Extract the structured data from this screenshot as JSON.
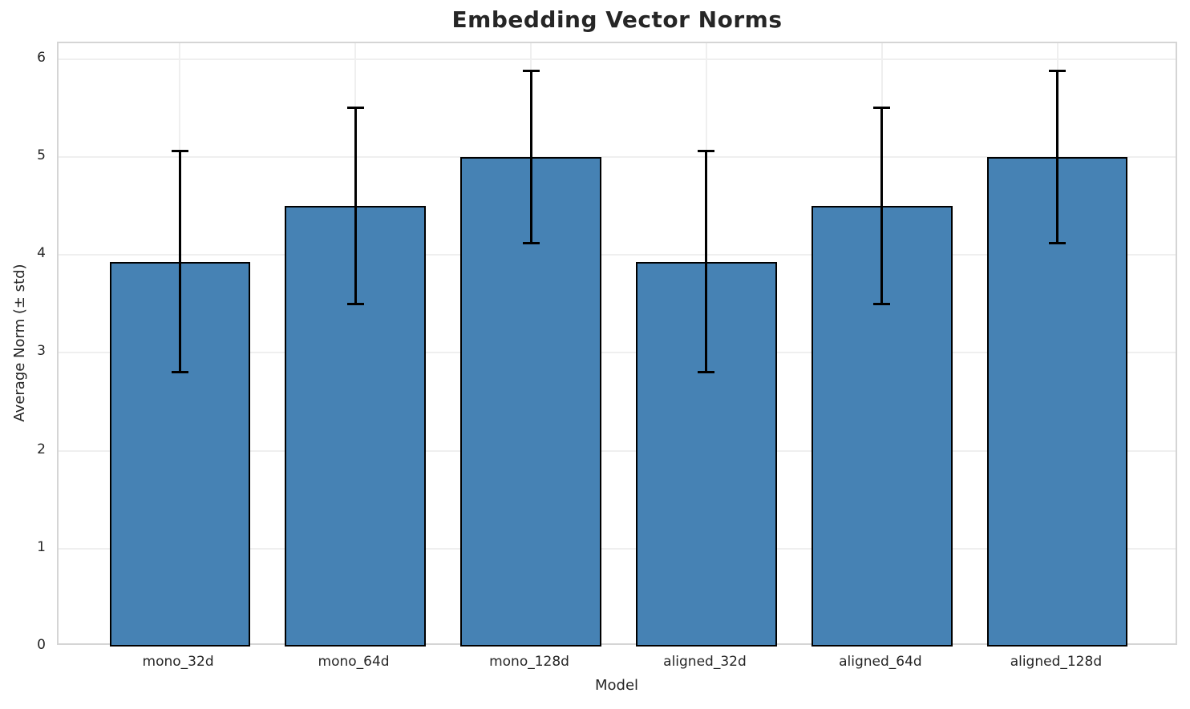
{
  "chart_data": {
    "type": "bar",
    "title": "Embedding Vector Norms",
    "xlabel": "Model",
    "ylabel": "Average Norm (± std)",
    "categories": [
      "mono_32d",
      "mono_64d",
      "mono_128d",
      "aligned_32d",
      "aligned_64d",
      "aligned_128d"
    ],
    "values": [
      3.93,
      4.5,
      5.0,
      3.93,
      4.5,
      5.0
    ],
    "errors": [
      1.13,
      1.0,
      0.88,
      1.13,
      1.0,
      0.88
    ],
    "error_style": "plus-minus std with caps",
    "yticks": [
      0,
      1,
      2,
      3,
      4,
      5,
      6
    ],
    "ylim": [
      0,
      6.16
    ],
    "xlim": [
      -0.69,
      5.69
    ],
    "bar_width": 0.8,
    "bar_color": "#4682b4",
    "bar_edge_color": "#000000",
    "error_color": "#000000",
    "grid": true,
    "grid_color": "#efefef",
    "spine_color": "#d5d5d5",
    "text_color": "#262626",
    "legend": false
  }
}
